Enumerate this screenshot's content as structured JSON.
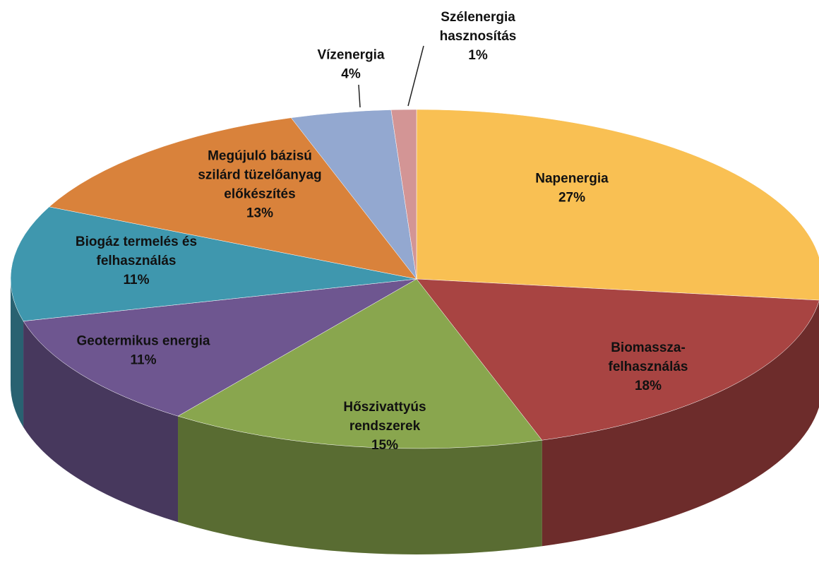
{
  "chart_data": {
    "type": "pie",
    "categories": [
      "Napenergia",
      "Biomassza-\nfelhasználás",
      "Hőszivattyús\nrendszerek",
      "Geotermikus energia",
      "Biogáz termelés és\nfelhasználás",
      "Megújuló bázisú\nszilárd tüzelőanyag\nelőkészítés",
      "Vízenergia",
      "Szélenergia\nhasznosítás"
    ],
    "values": [
      27,
      18,
      15,
      11,
      11,
      13,
      4,
      1
    ],
    "value_labels": [
      "27%",
      "18%",
      "15%",
      "11%",
      "11%",
      "13%",
      "4%",
      "1%"
    ],
    "colors": [
      "#f9c053",
      "#a84442",
      "#89a64e",
      "#6e5690",
      "#3f97ae",
      "#d9823b",
      "#93a8d0",
      "#d39595"
    ]
  }
}
